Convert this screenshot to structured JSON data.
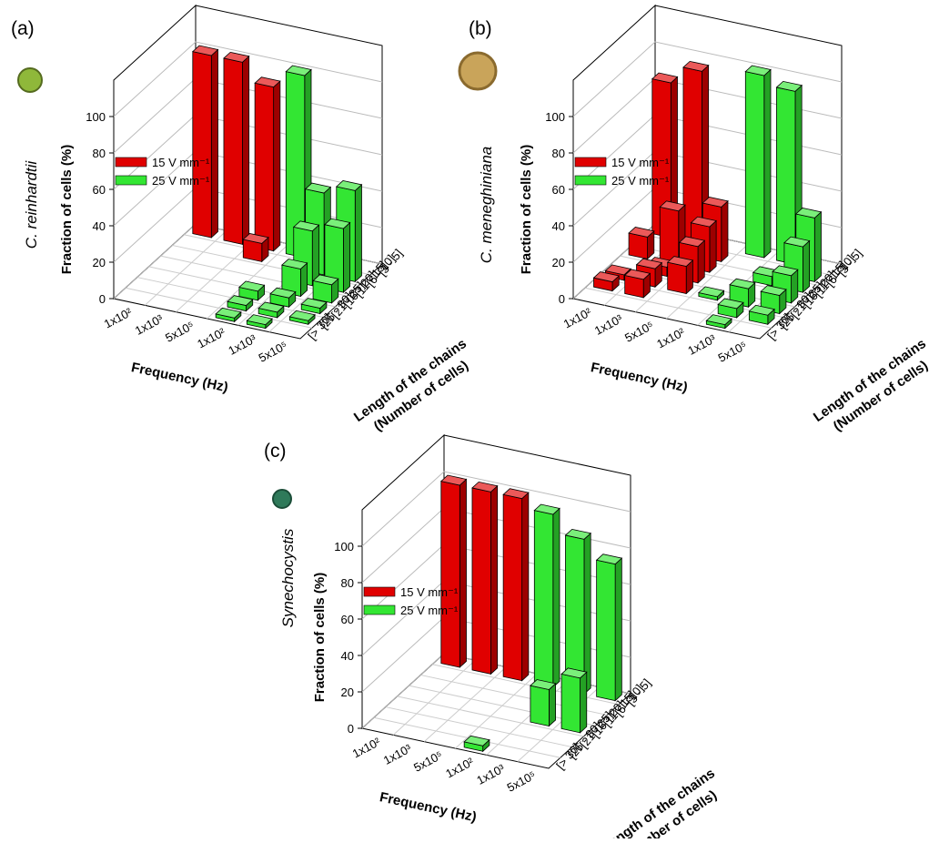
{
  "chart_data": [
    {
      "type": "bar3d",
      "panel_label": "(a)",
      "species": "C. reinhardtii",
      "ylabel": "Fraction of cells (%)",
      "xlabel": "Frequency (Hz)",
      "zlabel": [
        "Length of the chains",
        "(Number of cells)"
      ],
      "categories": [
        "1x10²",
        "1x10³",
        "5x10⁵"
      ],
      "z_categories": [
        "[3 - 5]",
        "[6 - 10]",
        "[11 - 15]",
        "[16 - 20]",
        "[21 - 25]",
        "[26 - 30]",
        "[> 30]"
      ],
      "ylim": [
        0,
        120
      ],
      "yticks": [
        0,
        20,
        40,
        60,
        80,
        100
      ],
      "series": [
        {
          "name": "15 V mm⁻¹",
          "color": "#e00000",
          "values": [
            [
              100,
              0,
              0,
              0,
              0,
              0,
              0
            ],
            [
              100,
              0,
              0,
              0,
              0,
              0,
              0
            ],
            [
              90,
              10,
              0,
              0,
              0,
              0,
              0
            ]
          ]
        },
        {
          "name": "25 V mm⁻¹",
          "color": "#33e633",
          "values": [
            [
              100,
              0,
              0,
              0,
              5,
              3,
              2
            ],
            [
              0,
              45,
              30,
              15,
              5,
              3,
              2
            ],
            [
              0,
              50,
              35,
              10,
              3,
              2,
              0
            ]
          ]
        }
      ]
    },
    {
      "type": "bar3d",
      "panel_label": "(b)",
      "species": "C. meneghiniana",
      "ylabel": "Fraction of cells (%)",
      "xlabel": "Frequency (Hz)",
      "zlabel": [
        "Length of the chains",
        "(Number of cells)"
      ],
      "categories": [
        "1x10²",
        "1x10³",
        "5x10⁵"
      ],
      "z_categories": [
        "[3 - 5]",
        "[6 - 10]",
        "[11 - 15]",
        "[16 - 20]",
        "[21 - 25]",
        "[26 - 30]",
        "[> 30]"
      ],
      "ylim": [
        0,
        120
      ],
      "yticks": [
        0,
        20,
        40,
        60,
        80,
        100
      ],
      "series": [
        {
          "name": "15 V mm⁻¹",
          "color": "#e00000",
          "values": [
            [
              85,
              0,
              12,
              0,
              3,
              5,
              0
            ],
            [
              95,
              0,
              30,
              5,
              10,
              10,
              0
            ],
            [
              0,
              30,
              25,
              20,
              15,
              0,
              0
            ]
          ]
        },
        {
          "name": "25 V mm⁻¹",
          "color": "#33e633",
          "values": [
            [
              100,
              0,
              0,
              0,
              2,
              0,
              0
            ],
            [
              95,
              0,
              5,
              0,
              10,
              5,
              2
            ],
            [
              0,
              35,
              25,
              15,
              10,
              5,
              0
            ]
          ]
        }
      ]
    },
    {
      "type": "bar3d",
      "panel_label": "(c)",
      "species": "Synechocystis",
      "ylabel": "Fraction of cells (%)",
      "xlabel": "Frequency (Hz)",
      "zlabel": [
        "Length of the chains",
        "(Number of cells)"
      ],
      "categories": [
        "1x10²",
        "1x10³",
        "5x10⁵"
      ],
      "z_categories": [
        "[3 - 5]",
        "[6 - 10]",
        "[11 - 15]",
        "[16 - 20]",
        "[21 - 25]",
        "[26 - 30]",
        "[> 30]"
      ],
      "ylim": [
        0,
        120
      ],
      "yticks": [
        0,
        20,
        40,
        60,
        80,
        100
      ],
      "series": [
        {
          "name": "15 V mm⁻¹",
          "color": "#e00000",
          "values": [
            [
              100,
              0,
              0,
              0,
              0,
              0,
              0
            ],
            [
              100,
              0,
              0,
              0,
              0,
              0,
              0
            ],
            [
              100,
              0,
              0,
              0,
              0,
              0,
              0
            ]
          ]
        },
        {
          "name": "25 V mm⁻¹",
          "color": "#33e633",
          "values": [
            [
              95,
              0,
              0,
              0,
              0,
              0,
              3
            ],
            [
              85,
              0,
              0,
              20,
              0,
              0,
              0
            ],
            [
              75,
              0,
              0,
              30,
              0,
              0,
              0
            ]
          ]
        }
      ]
    }
  ]
}
